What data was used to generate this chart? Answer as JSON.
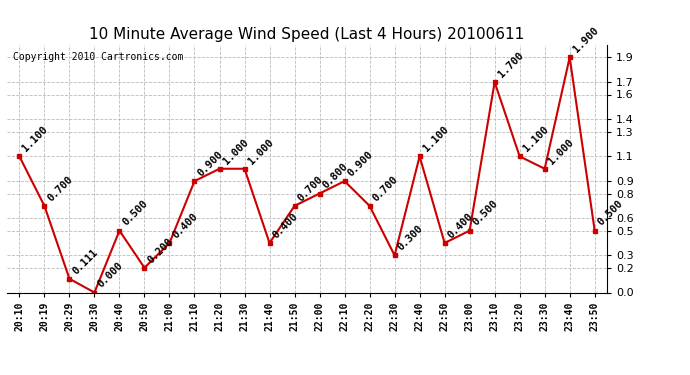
{
  "title": "10 Minute Average Wind Speed (Last 4 Hours) 20100611",
  "copyright": "Copyright 2010 Cartronics.com",
  "x_labels": [
    "20:10",
    "20:19",
    "20:29",
    "20:30",
    "20:40",
    "20:50",
    "21:00",
    "21:10",
    "21:20",
    "21:30",
    "21:40",
    "21:50",
    "22:00",
    "22:10",
    "22:20",
    "22:30",
    "22:40",
    "22:50",
    "23:00",
    "23:10",
    "23:20",
    "23:30",
    "23:40",
    "23:50"
  ],
  "y_values": [
    1.1,
    0.7,
    0.111,
    0.0,
    0.5,
    0.2,
    0.4,
    0.9,
    1.0,
    1.0,
    0.4,
    0.7,
    0.8,
    0.9,
    0.7,
    0.3,
    1.1,
    0.4,
    0.5,
    1.7,
    1.1,
    1.0,
    1.9,
    0.5
  ],
  "point_labels": [
    "1.100",
    "0.700",
    "0.111",
    "0.000",
    "0.500",
    "0.200",
    "0.400",
    "0.900",
    "1.000",
    "1.000",
    "0.400",
    "0.700",
    "0.800",
    "0.900",
    "0.700",
    "0.300",
    "1.100",
    "0.400",
    "0.500",
    "1.700",
    "1.100",
    "1.000",
    "1.900",
    "0.500"
  ],
  "line_color": "#cc0000",
  "marker_color": "#cc0000",
  "bg_color": "#ffffff",
  "grid_color": "#bbbbbb",
  "ylim": [
    0.0,
    2.0
  ],
  "yticks": [
    0.0,
    0.2,
    0.3,
    0.5,
    0.6,
    0.8,
    0.9,
    1.1,
    1.3,
    1.4,
    1.6,
    1.7,
    1.9
  ],
  "title_fontsize": 11,
  "label_fontsize": 7,
  "annotation_fontsize": 7.5,
  "copyright_fontsize": 7
}
